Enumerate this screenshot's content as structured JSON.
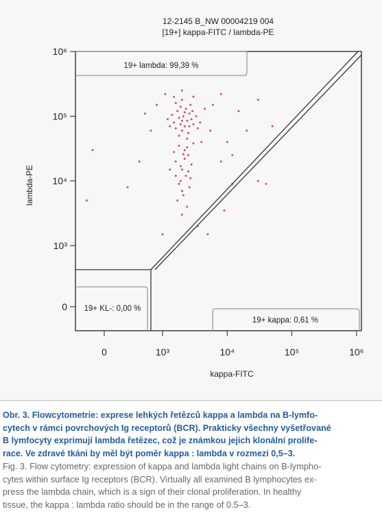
{
  "chart_data": {
    "type": "scatter",
    "title": "12-2145 B_NW 00004219 004",
    "subtitle": "[19+] kappa-FITC / lambda-PE",
    "xlabel": "kappa-FITC",
    "ylabel": "lambda-PE",
    "scale": "biexponential",
    "color": "#d94a68",
    "xlim": [
      -500,
      1000000
    ],
    "ylim": [
      -400,
      1000000
    ],
    "xticks": [
      0,
      {
        "value": 1000,
        "label": "10³"
      },
      {
        "value": 10000,
        "label": "10⁴"
      },
      {
        "value": 100000,
        "label": "10⁵"
      },
      {
        "value": 1000000,
        "label": "10⁶"
      }
    ],
    "yticks": [
      0,
      {
        "value": 1000,
        "label": "10³"
      },
      {
        "value": 10000,
        "label": "10⁴"
      },
      {
        "value": 100000,
        "label": "10⁵"
      },
      {
        "value": 1000000,
        "label": "10⁶"
      }
    ],
    "gates": [
      "19+ lambda: 99,39 %",
      "19+ KL-: 0,00 %",
      "19+ kappa: 0,61 %"
    ],
    "x": [
      1500,
      1800,
      2200,
      2600,
      2000,
      1700,
      2400,
      3000,
      1900,
      2300,
      2800,
      1600,
      2100,
      2500,
      3300,
      1400,
      2700,
      2000,
      1800,
      2200,
      3500,
      1300,
      2900,
      1600,
      2400,
      2000,
      1200,
      3800,
      2600,
      1900,
      1100,
      2000,
      3000,
      1500,
      4500,
      5500,
      6000,
      900,
      700,
      800,
      1800,
      2200,
      2500,
      1600,
      2000,
      2300,
      1900,
      2600,
      2100,
      1700,
      2400,
      2000,
      2800,
      1500,
      2200,
      3000,
      1300,
      2700,
      2000,
      1800,
      2500,
      1600,
      2100,
      2400,
      1900,
      8000,
      12000,
      20000,
      30000,
      40000,
      -200,
      -300,
      600,
      400,
      9000,
      3500,
      5000,
      12000,
      50000,
      10000,
      15000,
      30000,
      8000,
      4000,
      1000
    ],
    "y": [
      80000,
      95000,
      70000,
      110000,
      60000,
      120000,
      85000,
      75000,
      140000,
      130000,
      90000,
      65000,
      100000,
      55000,
      100000,
      105000,
      150000,
      85000,
      50000,
      115000,
      65000,
      70000,
      120000,
      160000,
      45000,
      180000,
      90000,
      80000,
      70000,
      75000,
      220000,
      250000,
      200000,
      200000,
      130000,
      60000,
      150000,
      150000,
      110000,
      60000,
      35000,
      30000,
      25000,
      20000,
      15000,
      12000,
      10000,
      8000,
      6000,
      5000,
      4000,
      3000,
      18000,
      28000,
      22000,
      38000,
      15000,
      11000,
      7000,
      9000,
      14000,
      12000,
      26000,
      33000,
      17000,
      20000,
      9000,
      60000,
      10000,
      9000,
      30000,
      5000,
      20000,
      8000,
      3500,
      2000,
      1500,
      25000,
      70000,
      40000,
      120000,
      180000,
      220000,
      40000,
      1500
    ]
  },
  "caption": {
    "cs": [
      "Obr. 3. Flowcytometrie: exprese lehkých řetězců kappa a lambda na B-lymfo-",
      "cytech v rámci povrchových Ig receptorů (BCR). Prakticky všechny vyšetřované",
      "B lymfocyty exprimují lambda řetězec, což je známkou jejich klonální prolife-",
      "race. Ve zdravé tkáni by měl být poměr kappa : lambda v rozmezí 0,5–3."
    ],
    "en": [
      "Fig. 3. Flow cytometry: expression of kappa and lambda light chains on B-lympho-",
      "cytes within surface Ig receptors (BCR). Virtually all examined B lymphocytes ex-",
      "press the lambda chain, which is a sign of their clonal proliferation. In healthy",
      "tissue, the kappa : lambda ratio should be in the range of 0.5–3."
    ]
  }
}
